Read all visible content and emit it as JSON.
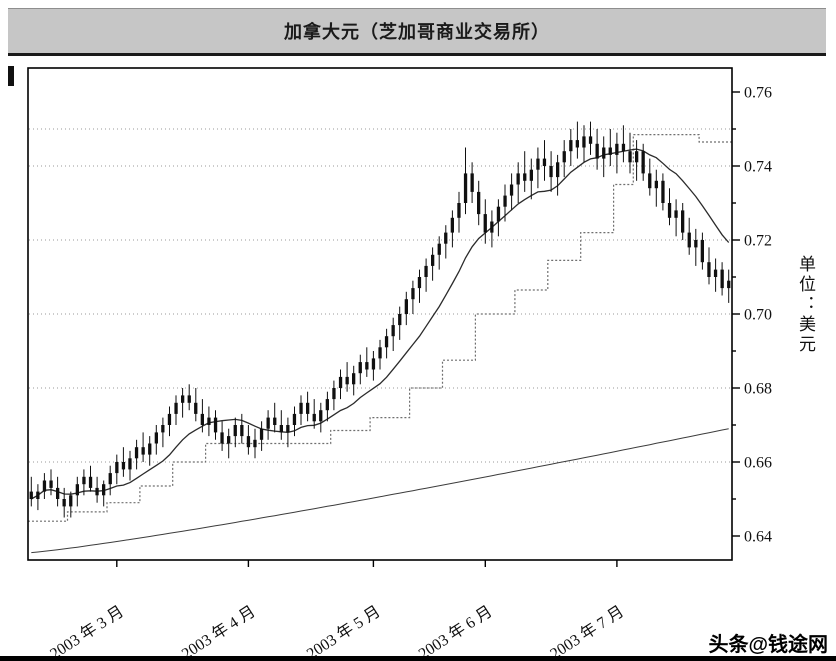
{
  "title_bar": {
    "title": "加拿大元（芝加哥商业交易所）"
  },
  "watermark": "头条@钱途网",
  "chart_data": {
    "type": "candlestick",
    "title": "加拿大元（芝加哥商业交易所）",
    "unit_label": "单位：美元",
    "y_range": [
      0.6335,
      0.7665
    ],
    "y_ticks": [
      0.64,
      0.66,
      0.68,
      0.7,
      0.72,
      0.74,
      0.76
    ],
    "y_minor_step": 0.01,
    "gridline_levels": [
      0.66,
      0.68,
      0.7,
      0.72,
      0.74,
      0.75
    ],
    "x_tick_labels": [
      "2003 年 3 月",
      "2003 年 4 月",
      "2003 年 5 月",
      "2003 年 6 月",
      "2003 年 7 月"
    ],
    "x_tick_indices": [
      13,
      33,
      52,
      69,
      89
    ],
    "ma_window": 12,
    "trend_line": {
      "start": 0.6355,
      "end": 0.669,
      "power": 1.15
    },
    "step_line_segments": [
      {
        "from": 0,
        "to": 5,
        "value": 0.644
      },
      {
        "from": 6,
        "to": 11,
        "value": 0.6465
      },
      {
        "from": 12,
        "to": 16,
        "value": 0.649
      },
      {
        "from": 17,
        "to": 21,
        "value": 0.6535
      },
      {
        "from": 22,
        "to": 26,
        "value": 0.66
      },
      {
        "from": 27,
        "to": 45,
        "value": 0.665
      },
      {
        "from": 46,
        "to": 51,
        "value": 0.6685
      },
      {
        "from": 52,
        "to": 57,
        "value": 0.672
      },
      {
        "from": 58,
        "to": 62,
        "value": 0.68
      },
      {
        "from": 63,
        "to": 67,
        "value": 0.6875
      },
      {
        "from": 68,
        "to": 73,
        "value": 0.7
      },
      {
        "from": 74,
        "to": 78,
        "value": 0.7065
      },
      {
        "from": 79,
        "to": 83,
        "value": 0.7145
      },
      {
        "from": 84,
        "to": 88,
        "value": 0.722
      },
      {
        "from": 89,
        "to": 91,
        "value": 0.735
      },
      {
        "from": 92,
        "to": 101,
        "value": 0.7485
      },
      {
        "from": 102,
        "to": 106,
        "value": 0.7465
      }
    ],
    "candles": [
      [
        0.652,
        0.656,
        0.648,
        0.65
      ],
      [
        0.65,
        0.654,
        0.647,
        0.652
      ],
      [
        0.652,
        0.657,
        0.65,
        0.655
      ],
      [
        0.655,
        0.658,
        0.651,
        0.653
      ],
      [
        0.653,
        0.656,
        0.648,
        0.65
      ],
      [
        0.65,
        0.653,
        0.645,
        0.648
      ],
      [
        0.648,
        0.652,
        0.645,
        0.651
      ],
      [
        0.651,
        0.656,
        0.648,
        0.654
      ],
      [
        0.654,
        0.658,
        0.651,
        0.656
      ],
      [
        0.656,
        0.659,
        0.652,
        0.653
      ],
      [
        0.653,
        0.656,
        0.649,
        0.651
      ],
      [
        0.651,
        0.655,
        0.648,
        0.654
      ],
      [
        0.654,
        0.659,
        0.651,
        0.657
      ],
      [
        0.657,
        0.662,
        0.654,
        0.66
      ],
      [
        0.66,
        0.664,
        0.656,
        0.658
      ],
      [
        0.658,
        0.663,
        0.655,
        0.661
      ],
      [
        0.661,
        0.666,
        0.658,
        0.664
      ],
      [
        0.664,
        0.668,
        0.66,
        0.662
      ],
      [
        0.662,
        0.667,
        0.659,
        0.665
      ],
      [
        0.665,
        0.67,
        0.662,
        0.668
      ],
      [
        0.668,
        0.672,
        0.664,
        0.67
      ],
      [
        0.67,
        0.675,
        0.667,
        0.673
      ],
      [
        0.673,
        0.678,
        0.67,
        0.676
      ],
      [
        0.676,
        0.68,
        0.672,
        0.678
      ],
      [
        0.678,
        0.681,
        0.674,
        0.676
      ],
      [
        0.676,
        0.68,
        0.671,
        0.673
      ],
      [
        0.673,
        0.677,
        0.668,
        0.67
      ],
      [
        0.67,
        0.675,
        0.667,
        0.672
      ],
      [
        0.672,
        0.674,
        0.666,
        0.668
      ],
      [
        0.668,
        0.671,
        0.663,
        0.665
      ],
      [
        0.665,
        0.669,
        0.661,
        0.667
      ],
      [
        0.667,
        0.672,
        0.664,
        0.67
      ],
      [
        0.67,
        0.673,
        0.665,
        0.667
      ],
      [
        0.667,
        0.67,
        0.662,
        0.664
      ],
      [
        0.664,
        0.669,
        0.661,
        0.666
      ],
      [
        0.666,
        0.671,
        0.663,
        0.669
      ],
      [
        0.669,
        0.674,
        0.666,
        0.672
      ],
      [
        0.672,
        0.676,
        0.668,
        0.67
      ],
      [
        0.67,
        0.674,
        0.666,
        0.668
      ],
      [
        0.668,
        0.672,
        0.664,
        0.67
      ],
      [
        0.67,
        0.675,
        0.667,
        0.673
      ],
      [
        0.673,
        0.678,
        0.67,
        0.676
      ],
      [
        0.676,
        0.679,
        0.671,
        0.673
      ],
      [
        0.673,
        0.677,
        0.669,
        0.671
      ],
      [
        0.671,
        0.676,
        0.668,
        0.674
      ],
      [
        0.674,
        0.679,
        0.671,
        0.677
      ],
      [
        0.677,
        0.682,
        0.674,
        0.68
      ],
      [
        0.68,
        0.685,
        0.677,
        0.683
      ],
      [
        0.683,
        0.687,
        0.679,
        0.681
      ],
      [
        0.681,
        0.686,
        0.678,
        0.684
      ],
      [
        0.684,
        0.689,
        0.681,
        0.687
      ],
      [
        0.687,
        0.691,
        0.683,
        0.685
      ],
      [
        0.685,
        0.69,
        0.682,
        0.688
      ],
      [
        0.688,
        0.693,
        0.685,
        0.691
      ],
      [
        0.691,
        0.696,
        0.688,
        0.694
      ],
      [
        0.694,
        0.699,
        0.69,
        0.697
      ],
      [
        0.697,
        0.702,
        0.693,
        0.7
      ],
      [
        0.7,
        0.706,
        0.697,
        0.704
      ],
      [
        0.704,
        0.709,
        0.7,
        0.707
      ],
      [
        0.707,
        0.712,
        0.703,
        0.71
      ],
      [
        0.71,
        0.715,
        0.706,
        0.713
      ],
      [
        0.713,
        0.718,
        0.709,
        0.716
      ],
      [
        0.716,
        0.721,
        0.712,
        0.719
      ],
      [
        0.719,
        0.724,
        0.715,
        0.722
      ],
      [
        0.722,
        0.728,
        0.718,
        0.726
      ],
      [
        0.726,
        0.733,
        0.722,
        0.73
      ],
      [
        0.73,
        0.745,
        0.727,
        0.738
      ],
      [
        0.738,
        0.741,
        0.73,
        0.733
      ],
      [
        0.733,
        0.736,
        0.724,
        0.727
      ],
      [
        0.727,
        0.731,
        0.719,
        0.722
      ],
      [
        0.722,
        0.728,
        0.718,
        0.725
      ],
      [
        0.725,
        0.731,
        0.721,
        0.729
      ],
      [
        0.729,
        0.735,
        0.725,
        0.732
      ],
      [
        0.732,
        0.738,
        0.728,
        0.735
      ],
      [
        0.735,
        0.741,
        0.73,
        0.738
      ],
      [
        0.738,
        0.744,
        0.733,
        0.736
      ],
      [
        0.736,
        0.742,
        0.731,
        0.739
      ],
      [
        0.739,
        0.745,
        0.734,
        0.742
      ],
      [
        0.742,
        0.747,
        0.736,
        0.74
      ],
      [
        0.74,
        0.744,
        0.733,
        0.737
      ],
      [
        0.737,
        0.743,
        0.732,
        0.741
      ],
      [
        0.741,
        0.747,
        0.737,
        0.744
      ],
      [
        0.744,
        0.75,
        0.74,
        0.747
      ],
      [
        0.747,
        0.752,
        0.742,
        0.745
      ],
      [
        0.745,
        0.751,
        0.741,
        0.748
      ],
      [
        0.748,
        0.752,
        0.743,
        0.746
      ],
      [
        0.746,
        0.75,
        0.739,
        0.742
      ],
      [
        0.742,
        0.748,
        0.737,
        0.745
      ],
      [
        0.745,
        0.75,
        0.74,
        0.743
      ],
      [
        0.743,
        0.749,
        0.738,
        0.746
      ],
      [
        0.746,
        0.751,
        0.741,
        0.744
      ],
      [
        0.744,
        0.749,
        0.738,
        0.741
      ],
      [
        0.741,
        0.747,
        0.736,
        0.744
      ],
      [
        0.744,
        0.746,
        0.736,
        0.738
      ],
      [
        0.738,
        0.742,
        0.732,
        0.734
      ],
      [
        0.734,
        0.739,
        0.729,
        0.736
      ],
      [
        0.736,
        0.738,
        0.728,
        0.73
      ],
      [
        0.73,
        0.734,
        0.724,
        0.726
      ],
      [
        0.726,
        0.731,
        0.721,
        0.728
      ],
      [
        0.728,
        0.73,
        0.72,
        0.722
      ],
      [
        0.722,
        0.726,
        0.716,
        0.718
      ],
      [
        0.718,
        0.723,
        0.713,
        0.72
      ],
      [
        0.72,
        0.722,
        0.712,
        0.714
      ],
      [
        0.714,
        0.718,
        0.708,
        0.71
      ],
      [
        0.71,
        0.715,
        0.706,
        0.712
      ],
      [
        0.712,
        0.714,
        0.705,
        0.707
      ],
      [
        0.707,
        0.712,
        0.703,
        0.709
      ]
    ]
  }
}
